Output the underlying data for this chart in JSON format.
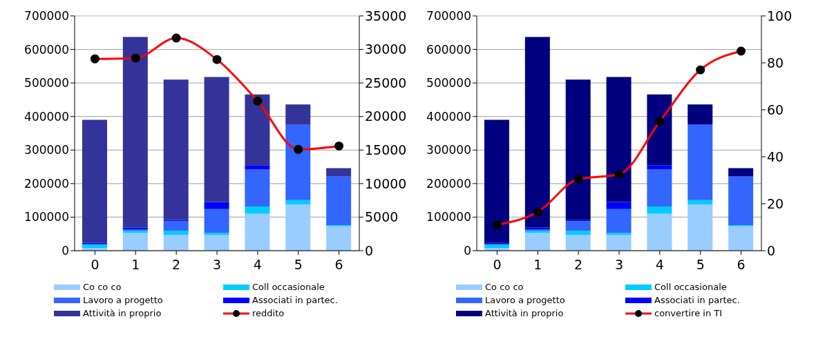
{
  "chart_data": [
    {
      "type": "bar",
      "stacked": true,
      "categories": [
        "0",
        "1",
        "2",
        "3",
        "4",
        "5",
        "6"
      ],
      "ylim": [
        0,
        700000
      ],
      "yticks": [
        0,
        100000,
        200000,
        300000,
        400000,
        500000,
        600000,
        700000
      ],
      "y2lim": [
        0,
        35000
      ],
      "y2ticks": [
        0,
        5000,
        10000,
        15000,
        20000,
        25000,
        30000,
        35000
      ],
      "grid": "y",
      "legend": "bottom",
      "marker": "circle",
      "series": [
        {
          "name": "Co co co",
          "color": "#99ccff",
          "values": [
            8000,
            53000,
            47000,
            47000,
            110000,
            138000,
            73000
          ]
        },
        {
          "name": "Coll occasionale",
          "color": "#00ccff",
          "values": [
            11000,
            6000,
            12000,
            6000,
            22000,
            13000,
            3000
          ]
        },
        {
          "name": "Lavoro a progetto",
          "color": "#3366ff",
          "values": [
            0,
            5000,
            29000,
            71000,
            111000,
            224000,
            145000
          ]
        },
        {
          "name": "Associati in partec.",
          "color": "#0000ff",
          "values": [
            4000,
            5000,
            3000,
            21000,
            12000,
            1000,
            1000
          ]
        },
        {
          "name": "Attività in proprio",
          "color": "#333399",
          "values": [
            367000,
            568000,
            419000,
            373000,
            211000,
            60000,
            24000
          ]
        },
        {
          "name": "reddito",
          "type": "line",
          "axis": "y2",
          "color": "#ff0000",
          "values": [
            28600,
            28700,
            31700,
            28500,
            22300,
            15100,
            15600
          ]
        }
      ]
    },
    {
      "type": "bar",
      "stacked": true,
      "categories": [
        "0",
        "1",
        "2",
        "3",
        "4",
        "5",
        "6"
      ],
      "ylim": [
        0,
        700000
      ],
      "yticks": [
        0,
        100000,
        200000,
        300000,
        400000,
        500000,
        600000,
        700000
      ],
      "y2lim": [
        0,
        100
      ],
      "y2ticks": [
        0,
        20,
        40,
        60,
        80,
        100
      ],
      "grid": "y",
      "legend": "bottom",
      "marker": "circle",
      "series": [
        {
          "name": "Co co co",
          "color": "#99ccff",
          "values": [
            8000,
            53000,
            47000,
            47000,
            110000,
            138000,
            73000
          ]
        },
        {
          "name": "Coll occasionale",
          "color": "#00ccff",
          "values": [
            11000,
            6000,
            12000,
            6000,
            22000,
            13000,
            3000
          ]
        },
        {
          "name": "Lavoro a progetto",
          "color": "#3366ff",
          "values": [
            0,
            5000,
            29000,
            71000,
            111000,
            224000,
            145000
          ]
        },
        {
          "name": "Associati in partec.",
          "color": "#0000ff",
          "values": [
            4000,
            5000,
            3000,
            21000,
            12000,
            1000,
            1000
          ]
        },
        {
          "name": "Attività in proprio",
          "color": "#000080",
          "values": [
            367000,
            568000,
            419000,
            373000,
            211000,
            60000,
            24000
          ]
        },
        {
          "name": "convertire in TI",
          "type": "line",
          "axis": "y2",
          "color": "#ff0000",
          "values": [
            11,
            16.5,
            30.5,
            32.5,
            55,
            77,
            85
          ]
        }
      ]
    }
  ]
}
